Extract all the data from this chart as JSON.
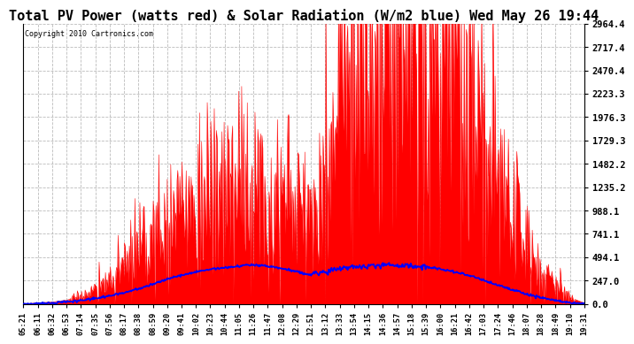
{
  "title": "Total PV Power (watts red) & Solar Radiation (W/m2 blue) Wed May 26 19:44",
  "copyright": "Copyright 2010 Cartronics.com",
  "yticks": [
    0.0,
    247.0,
    494.1,
    741.1,
    988.1,
    1235.2,
    1482.2,
    1729.3,
    1976.3,
    2223.3,
    2470.4,
    2717.4,
    2964.4
  ],
  "ymax": 2964.4,
  "ymin": 0.0,
  "red_color": "#FF0000",
  "blue_color": "#0000FF",
  "bg_color": "#FFFFFF",
  "grid_color": "#AAAAAA",
  "title_fontsize": 11,
  "xtick_labels": [
    "05:21",
    "06:11",
    "06:32",
    "06:53",
    "07:14",
    "07:35",
    "07:56",
    "08:17",
    "08:38",
    "08:59",
    "09:20",
    "09:41",
    "10:02",
    "10:23",
    "10:44",
    "11:05",
    "11:26",
    "11:47",
    "12:08",
    "12:29",
    "12:51",
    "13:12",
    "13:33",
    "13:54",
    "14:15",
    "14:36",
    "14:57",
    "15:18",
    "15:39",
    "16:00",
    "16:21",
    "16:42",
    "17:03",
    "17:24",
    "17:46",
    "18:07",
    "18:28",
    "18:49",
    "19:10",
    "19:31"
  ],
  "pv_base_envelope": [
    0,
    10,
    20,
    40,
    80,
    150,
    250,
    380,
    520,
    680,
    820,
    960,
    1060,
    1120,
    1180,
    1220,
    1250,
    1230,
    1200,
    1100,
    900,
    1400,
    2100,
    2500,
    2700,
    2750,
    2800,
    2750,
    2700,
    2600,
    2400,
    2100,
    1700,
    1300,
    900,
    600,
    350,
    180,
    70,
    10
  ],
  "solar_base": [
    0,
    5,
    12,
    22,
    38,
    58,
    85,
    120,
    160,
    210,
    260,
    305,
    340,
    365,
    385,
    400,
    415,
    400,
    375,
    340,
    310,
    340,
    375,
    390,
    400,
    410,
    405,
    400,
    390,
    370,
    340,
    300,
    250,
    200,
    150,
    105,
    65,
    35,
    12,
    2
  ],
  "spike_noise_scale": 0.45,
  "solar_noise_scale": 12,
  "seed": 17
}
